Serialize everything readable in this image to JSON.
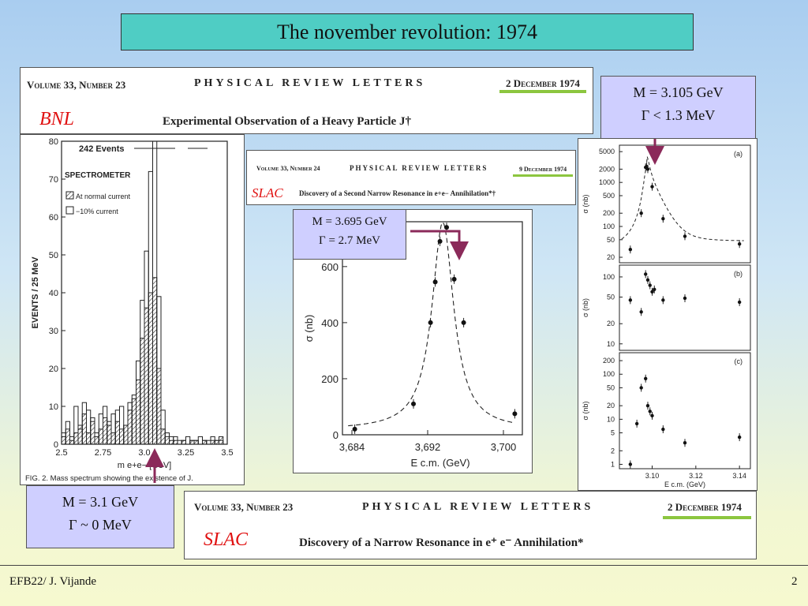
{
  "slide": {
    "title": "The november revolution: 1974"
  },
  "bnl_header": {
    "volume": "Volume 33, Number 23",
    "journal": "PHYSICAL REVIEW LETTERS",
    "date": "2 December 1974",
    "lab": "BNL",
    "article": "Experimental Observation of a Heavy Particle J†"
  },
  "slac_small_header": {
    "volume": "Volume 33, Number 24",
    "journal": "PHYSICAL REVIEW LETTERS",
    "date": "9 December 1974",
    "lab": "SLAC",
    "article": "Discovery of a Second Narrow Resonance in e+e− Annihilation*†"
  },
  "slac_bottom_header": {
    "volume": "Volume 33, Number 23",
    "journal": "PHYSICAL REVIEW LETTERS",
    "date": "2 December 1974",
    "lab": "SLAC",
    "article": "Discovery of a Narrow Resonance in e⁺ e⁻ Annihilation*"
  },
  "mass_boxes": {
    "bnl": {
      "mass": "M = 3.1 GeV",
      "width": "Γ ~ 0 MeV"
    },
    "psi_prime": {
      "mass": "M = 3.695 GeV",
      "width": "Γ = 2.7 MeV"
    },
    "slac_jpsi": {
      "mass": "M = 3.105 GeV",
      "width": "Γ < 1.3 MeV"
    }
  },
  "footer": {
    "left": "EFB22/ J. Vijande",
    "page": "2"
  },
  "colors": {
    "title_bg": "#4fcdc4",
    "mass_bg": "#cfcfff",
    "arrow": "#8b2a5a",
    "accent_green": "#8cc63f",
    "lab_red": "#e01010"
  },
  "chart_data": [
    {
      "type": "bar",
      "ylabel": "EVENTS / 25 MeV",
      "xlabel": "m e+e− [GeV]",
      "x_ticks": [
        "2.5",
        "2.75",
        "3.0",
        "3.25",
        "3.5"
      ],
      "y_ticks": [
        "0",
        "10",
        "20",
        "30",
        "40",
        "50",
        "60",
        "70",
        "80"
      ],
      "ylim": [
        0,
        80
      ],
      "annotations": [
        "242 Events",
        "SPECTROMETER",
        "At normal current",
        "−10% current"
      ],
      "caption": "FIG. 2.  Mass spectrum showing the existence of J.",
      "series": [
        {
          "name": "At normal current",
          "x": [
            2.5,
            2.525,
            2.55,
            2.575,
            2.6,
            2.625,
            2.65,
            2.675,
            2.7,
            2.725,
            2.75,
            2.775,
            2.8,
            2.825,
            2.85,
            2.875,
            2.9,
            2.925,
            2.95,
            2.975,
            3.0,
            3.025,
            3.05,
            3.075,
            3.1,
            3.125,
            3.15,
            3.175,
            3.2,
            3.225,
            3.25,
            3.275,
            3.3,
            3.325,
            3.35,
            3.375,
            3.4,
            3.425,
            3.45,
            3.475
          ],
          "values": [
            2,
            4,
            1,
            3,
            5,
            8,
            3,
            6,
            2,
            4,
            7,
            5,
            3,
            6,
            4,
            5,
            9,
            12,
            17,
            28,
            36,
            40,
            44,
            20,
            4,
            2,
            1,
            1,
            0,
            1,
            0,
            1,
            1,
            0,
            1,
            0,
            1,
            1,
            2,
            0
          ]
        },
        {
          "name": "−10% current",
          "x": [
            2.5,
            2.525,
            2.55,
            2.575,
            2.6,
            2.625,
            2.65,
            2.675,
            2.7,
            2.725,
            2.75,
            2.775,
            2.8,
            2.825,
            2.85,
            2.875,
            2.9,
            2.925,
            2.95,
            2.975,
            3.0,
            3.025,
            3.05,
            3.075,
            3.1,
            3.125,
            3.15,
            3.175,
            3.2,
            3.225,
            3.25,
            3.275,
            3.3,
            3.325,
            3.35,
            3.375,
            3.4,
            3.425,
            3.45,
            3.475
          ],
          "values": [
            3,
            6,
            2,
            10,
            4,
            11,
            9,
            7,
            3,
            8,
            10,
            6,
            8,
            9,
            10,
            5,
            11,
            13,
            22,
            38,
            51,
            72,
            80,
            39,
            9,
            3,
            2,
            2,
            1,
            1,
            2,
            1,
            1,
            2,
            1,
            1,
            2,
            1,
            1,
            0
          ]
        }
      ]
    },
    {
      "type": "scatter",
      "ylabel": "σ (nb)",
      "xlabel": "E c.m. (GeV)",
      "x_ticks": [
        "3,684",
        "3,692",
        "3,700"
      ],
      "y_ticks": [
        "0",
        "200",
        "400",
        "600"
      ],
      "xlim": [
        3.683,
        3.702
      ],
      "ylim": [
        0,
        760
      ],
      "points": {
        "x": [
          3.6843,
          3.6905,
          3.6923,
          3.6928,
          3.6933,
          3.694,
          3.6948,
          3.6958,
          3.7012
        ],
        "y": [
          20,
          110,
          400,
          545,
          690,
          740,
          555,
          400,
          75
        ]
      }
    },
    {
      "type": "scatter",
      "xlabel": "E c.m. (GeV)",
      "x_ticks": [
        "3.10",
        "3.12",
        "3.14"
      ],
      "panels": [
        {
          "label": "(a)",
          "ylabel": "σ (nb)",
          "y_ticks": [
            "20",
            "50",
            "100",
            "200",
            "500",
            "1000",
            "2000",
            "5000"
          ],
          "points": {
            "x": [
              3.09,
              3.095,
              3.097,
              3.0975,
              3.098,
              3.1,
              3.105,
              3.115,
              3.14
            ],
            "y": [
              30,
              200,
              2200,
              2300,
              2000,
              800,
              150,
              60,
              40
            ]
          }
        },
        {
          "label": "(b)",
          "ylabel": "σ (nb)",
          "y_ticks": [
            "10",
            "20",
            "50",
            "100"
          ],
          "points": {
            "x": [
              3.09,
              3.095,
              3.097,
              3.098,
              3.099,
              3.1,
              3.101,
              3.105,
              3.115,
              3.14
            ],
            "y": [
              45,
              30,
              110,
              90,
              75,
              60,
              65,
              45,
              48,
              42
            ]
          }
        },
        {
          "label": "(c)",
          "ylabel": "σ (nb)",
          "y_ticks": [
            "1",
            "2",
            "5",
            "10",
            "20",
            "50",
            "100",
            "200"
          ],
          "points": {
            "x": [
              3.09,
              3.093,
              3.095,
              3.097,
              3.098,
              3.099,
              3.1,
              3.105,
              3.115,
              3.14
            ],
            "y": [
              1,
              8,
              50,
              80,
              20,
              15,
              12,
              6,
              3,
              4
            ]
          }
        }
      ]
    }
  ]
}
